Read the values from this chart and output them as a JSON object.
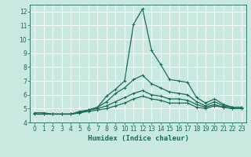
{
  "xlabel": "Humidex (Indice chaleur)",
  "background_color": "#c8e8e0",
  "grid_color": "#ffffff",
  "line_color": "#1a6b5a",
  "xlim": [
    -0.5,
    23.5
  ],
  "ylim": [
    4,
    12.5
  ],
  "yticks": [
    4,
    5,
    6,
    7,
    8,
    9,
    10,
    11,
    12
  ],
  "xticks": [
    0,
    1,
    2,
    3,
    4,
    5,
    6,
    7,
    8,
    9,
    10,
    11,
    12,
    13,
    14,
    15,
    16,
    17,
    18,
    19,
    20,
    21,
    22,
    23
  ],
  "curves": [
    [
      4.7,
      4.7,
      4.6,
      4.6,
      4.6,
      4.7,
      4.9,
      5.1,
      5.9,
      6.4,
      7.0,
      11.1,
      12.2,
      9.2,
      8.2,
      7.1,
      7.0,
      6.9,
      5.8,
      5.4,
      5.7,
      5.3,
      5.1,
      5.1
    ],
    [
      4.6,
      4.6,
      4.6,
      4.6,
      4.6,
      4.8,
      4.9,
      5.1,
      5.5,
      6.1,
      6.5,
      7.1,
      7.4,
      6.8,
      6.5,
      6.2,
      6.1,
      6.0,
      5.5,
      5.2,
      5.5,
      5.2,
      5.1,
      5.1
    ],
    [
      4.6,
      4.6,
      4.6,
      4.6,
      4.6,
      4.7,
      4.9,
      5.0,
      5.2,
      5.5,
      5.8,
      6.1,
      6.3,
      6.0,
      5.9,
      5.7,
      5.7,
      5.6,
      5.3,
      5.1,
      5.3,
      5.1,
      5.0,
      5.0
    ],
    [
      4.6,
      4.6,
      4.6,
      4.6,
      4.6,
      4.7,
      4.8,
      4.9,
      5.0,
      5.2,
      5.4,
      5.7,
      5.9,
      5.7,
      5.6,
      5.4,
      5.4,
      5.4,
      5.1,
      5.0,
      5.2,
      5.1,
      5.0,
      5.0
    ]
  ],
  "marker": "+",
  "markersize": 2.5,
  "linewidth": 0.9,
  "tick_fontsize": 5.5,
  "xlabel_fontsize": 6.5
}
